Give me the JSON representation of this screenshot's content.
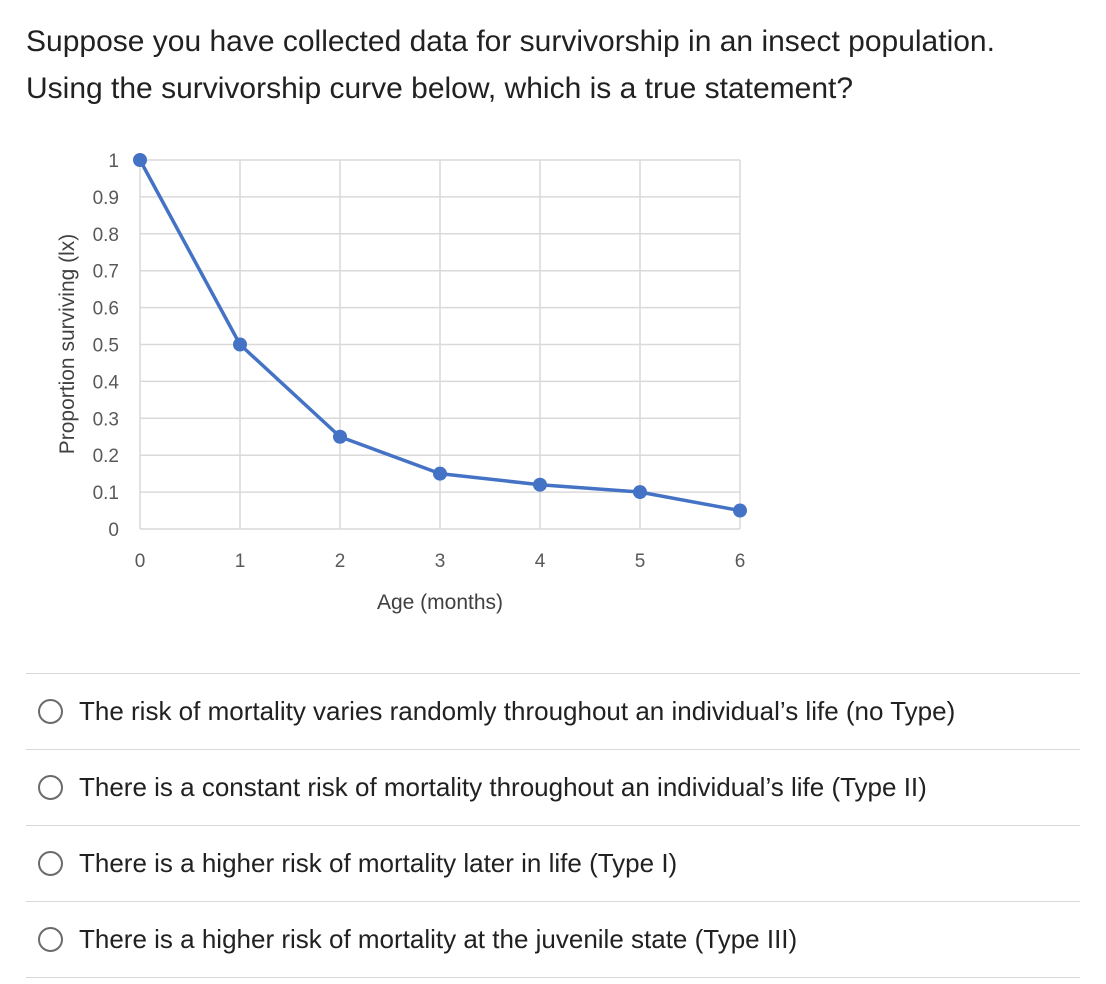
{
  "question": {
    "line1": "Suppose you have collected data for survivorship in an insect population.",
    "line2": "Using the survivorship curve below, which is a true statement?"
  },
  "choices": [
    {
      "label": "The risk of mortality varies randomly throughout an individual’s life (no Type)"
    },
    {
      "label": "There is a constant risk of mortality throughout an individual’s life (Type II)"
    },
    {
      "label": "There is a higher risk of mortality later in life (Type I)"
    },
    {
      "label": "There is a higher risk of mortality at the juvenile state (Type III)"
    }
  ],
  "colors": {
    "series": "#4472c4",
    "grid": "#d9d9d9",
    "axis_text": "#595959",
    "radio_border": "#6b6b6b",
    "divider": "#d9d9d9"
  },
  "chart_data": {
    "type": "line",
    "title": "",
    "xlabel": "Age (months)",
    "ylabel": "Proportion surviving (lx)",
    "x": [
      0,
      1,
      2,
      3,
      4,
      5,
      6
    ],
    "y": [
      1,
      0.5,
      0.25,
      0.15,
      0.12,
      0.1,
      0.05
    ],
    "x_ticks": [
      "0",
      "1",
      "2",
      "3",
      "4",
      "5",
      "6"
    ],
    "y_ticks": [
      "0",
      "0.1",
      "0.2",
      "0.3",
      "0.4",
      "0.5",
      "0.6",
      "0.7",
      "0.8",
      "0.9",
      "1"
    ],
    "xlim": [
      0,
      6
    ],
    "ylim": [
      0,
      1
    ],
    "grid": true,
    "markers": true
  }
}
